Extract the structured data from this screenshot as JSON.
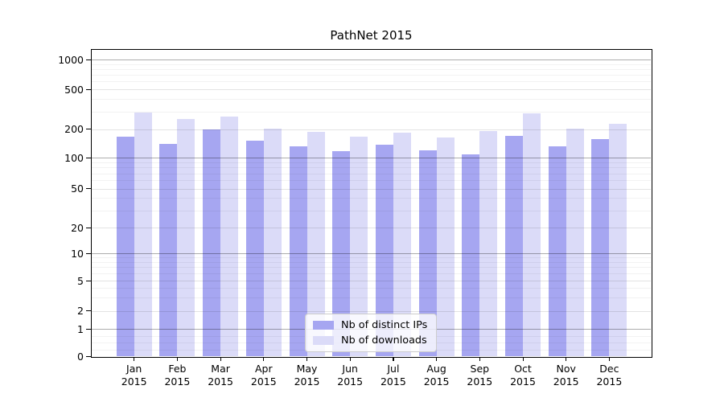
{
  "title": "PathNet 2015",
  "chart_data": {
    "type": "bar",
    "title": "PathNet 2015",
    "categories": [
      "Jan 2015",
      "Feb 2015",
      "Mar 2015",
      "Apr 2015",
      "May 2015",
      "Jun 2015",
      "Jul 2015",
      "Aug 2015",
      "Sep 2015",
      "Oct 2015",
      "Nov 2015",
      "Dec 2015"
    ],
    "series": [
      {
        "name": "Nb of distinct IPs",
        "color": "#a6a6f1",
        "values": [
          166,
          139,
          197,
          151,
          132,
          117,
          138,
          120,
          109,
          169,
          131,
          156
        ]
      },
      {
        "name": "Nb of downloads",
        "color": "#dbdbf8",
        "values": [
          290,
          252,
          265,
          203,
          186,
          166,
          184,
          163,
          192,
          288,
          201,
          224
        ]
      }
    ],
    "yscale": "symlog",
    "y_ticks": [
      0,
      1,
      2,
      5,
      10,
      20,
      50,
      100,
      200,
      500,
      1000
    ],
    "ylim": [
      0,
      1280
    ],
    "xlabel": "",
    "ylabel": "",
    "grid": true,
    "legend_position": "lower center"
  }
}
